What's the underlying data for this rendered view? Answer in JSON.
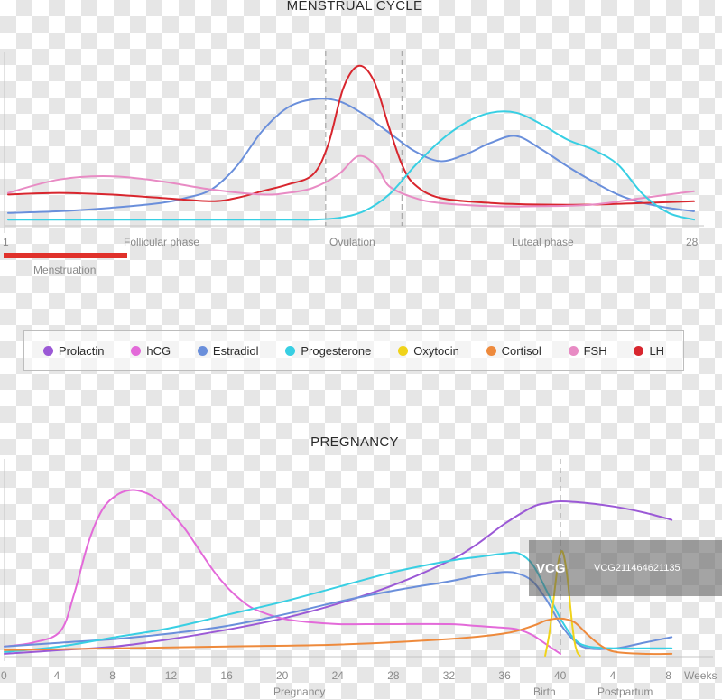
{
  "chart_data": [
    {
      "type": "line",
      "title": "MENSTRUAL CYCLE",
      "x": [
        1,
        28
      ],
      "xlim": [
        1,
        28
      ],
      "ylim": [
        0,
        100
      ],
      "tick_labels": {
        "start": "1",
        "end": "28"
      },
      "phase_labels": [
        "Follicular phase",
        "Ovulation",
        "Luteal phase"
      ],
      "band_label": "Menstruation",
      "band_color": "#e0312b",
      "ovulation_window": [
        13.5,
        16.5
      ],
      "series": [
        {
          "name": "Estradiol",
          "color": "#6a8fdb",
          "x": [
            1,
            3,
            5,
            7,
            8,
            9,
            10,
            11,
            12,
            13,
            14,
            15,
            16,
            17,
            18,
            19,
            20,
            21,
            22,
            23,
            24,
            25,
            26,
            27,
            28
          ],
          "y": [
            5,
            6,
            8,
            11,
            14,
            19,
            33,
            54,
            68,
            73,
            72,
            64,
            53,
            42,
            36,
            40,
            47,
            51,
            43,
            33,
            24,
            16,
            11,
            8,
            6
          ]
        },
        {
          "name": "LH",
          "color": "#d8262e",
          "x": [
            1,
            3,
            5,
            7,
            9,
            10,
            11,
            12,
            13,
            13.6,
            14.2,
            14.8,
            15.4,
            16,
            16.5,
            17,
            18,
            20,
            22,
            24,
            26,
            28
          ],
          "y": [
            16,
            17,
            16,
            14,
            12,
            14,
            18,
            22,
            28,
            46,
            80,
            93,
            84,
            56,
            34,
            22,
            14,
            11,
            10,
            10,
            11,
            12
          ]
        },
        {
          "name": "FSH",
          "color": "#e88bc4",
          "x": [
            1,
            3,
            5,
            7,
            9,
            11,
            12,
            13,
            14,
            14.8,
            15.5,
            16,
            17,
            18,
            20,
            22,
            24,
            26,
            28
          ],
          "y": [
            17,
            25,
            27,
            24,
            19,
            16,
            17,
            20,
            28,
            39,
            33,
            21,
            14,
            11,
            9,
            9,
            10,
            14,
            18
          ]
        },
        {
          "name": "Progesterone",
          "color": "#38cfe3",
          "x": [
            1,
            5,
            9,
            12,
            13,
            14,
            15,
            16,
            17,
            18,
            19,
            20,
            21,
            22,
            23,
            24,
            25,
            26,
            27,
            28
          ],
          "y": [
            1,
            1,
            1,
            1,
            1,
            2,
            6,
            16,
            33,
            48,
            59,
            65,
            65,
            58,
            49,
            43,
            34,
            16,
            5,
            1
          ]
        }
      ]
    },
    {
      "type": "line",
      "title": "PREGNANCY",
      "x_ticks": [
        "0",
        "4",
        "8",
        "12",
        "16",
        "20",
        "24",
        "28",
        "32",
        "36",
        "40",
        "4",
        "8",
        "Weeks"
      ],
      "xlim": [
        0,
        50
      ],
      "ylim": [
        0,
        100
      ],
      "period_labels": [
        "Pregnancy",
        "Birth",
        "Postpartum"
      ],
      "birth_week": 40,
      "series": [
        {
          "name": "Prolactin",
          "color": "#9b59d6",
          "x": [
            0,
            4,
            8,
            12,
            16,
            20,
            24,
            28,
            32,
            34,
            36,
            38,
            39,
            40,
            42,
            44,
            46,
            48
          ],
          "y": [
            1,
            3,
            5,
            9,
            14,
            20,
            28,
            38,
            51,
            60,
            71,
            80,
            82,
            83,
            82,
            80,
            77,
            73
          ]
        },
        {
          "name": "hCG",
          "color": "#e36ad9",
          "x": [
            0,
            2,
            4,
            5,
            6,
            7,
            8,
            9,
            10,
            11,
            12,
            13,
            14,
            15,
            16,
            17,
            18,
            20,
            22,
            24,
            26,
            28,
            32,
            34,
            36,
            37,
            38,
            39,
            40
          ],
          "y": [
            5,
            7,
            13,
            33,
            60,
            78,
            86,
            89,
            88,
            84,
            77,
            68,
            57,
            46,
            37,
            30,
            25,
            20,
            18,
            17,
            17,
            17,
            17,
            16,
            15,
            14,
            11,
            6,
            1
          ]
        },
        {
          "name": "Estradiol",
          "color": "#6a8fdb",
          "x": [
            0,
            4,
            8,
            12,
            16,
            20,
            24,
            28,
            32,
            34,
            36,
            37,
            38,
            39,
            40,
            41,
            42,
            44,
            46,
            48
          ],
          "y": [
            5,
            7,
            9,
            12,
            16,
            22,
            29,
            35,
            40,
            43,
            45,
            44,
            40,
            30,
            17,
            8,
            4,
            4,
            7,
            10
          ]
        },
        {
          "name": "Progesterone",
          "color": "#38cfe3",
          "x": [
            0,
            4,
            8,
            12,
            16,
            20,
            24,
            28,
            32,
            34,
            36,
            37,
            38,
            39,
            40,
            41,
            42,
            44,
            46,
            48
          ],
          "y": [
            2,
            5,
            10,
            15,
            22,
            29,
            37,
            45,
            51,
            53,
            55,
            55,
            49,
            35,
            20,
            9,
            5,
            4,
            4,
            4
          ]
        },
        {
          "name": "Oxytocin",
          "color": "#f0d31a",
          "x": [
            38.9,
            39.2,
            39.5,
            39.8,
            40,
            40.2,
            40.5,
            40.8,
            41,
            41.2,
            41.4
          ],
          "y": [
            0,
            12,
            30,
            48,
            55,
            55,
            42,
            20,
            8,
            2,
            0
          ]
        },
        {
          "name": "Cortisol",
          "color": "#ee8a3c",
          "x": [
            0,
            8,
            16,
            24,
            32,
            36,
            38,
            39,
            40,
            41,
            42,
            43,
            44,
            46,
            48
          ],
          "y": [
            3,
            4,
            5,
            6,
            9,
            12,
            16,
            19,
            20,
            18,
            11,
            5,
            2,
            1,
            1
          ]
        }
      ]
    }
  ],
  "legend": [
    {
      "label": "Prolactin",
      "color": "#9b59d6"
    },
    {
      "label": "hCG",
      "color": "#e36ad9"
    },
    {
      "label": "Estradiol",
      "color": "#6a8fdb"
    },
    {
      "label": "Progesterone",
      "color": "#38cfe3"
    },
    {
      "label": "Oxytocin",
      "color": "#f0d31a"
    },
    {
      "label": "Cortisol",
      "color": "#ee8a3c"
    },
    {
      "label": "FSH",
      "color": "#e88bc4"
    },
    {
      "label": "LH",
      "color": "#d8262e"
    }
  ],
  "watermark": {
    "logo": "VCG",
    "text": "VCG211464621135"
  }
}
